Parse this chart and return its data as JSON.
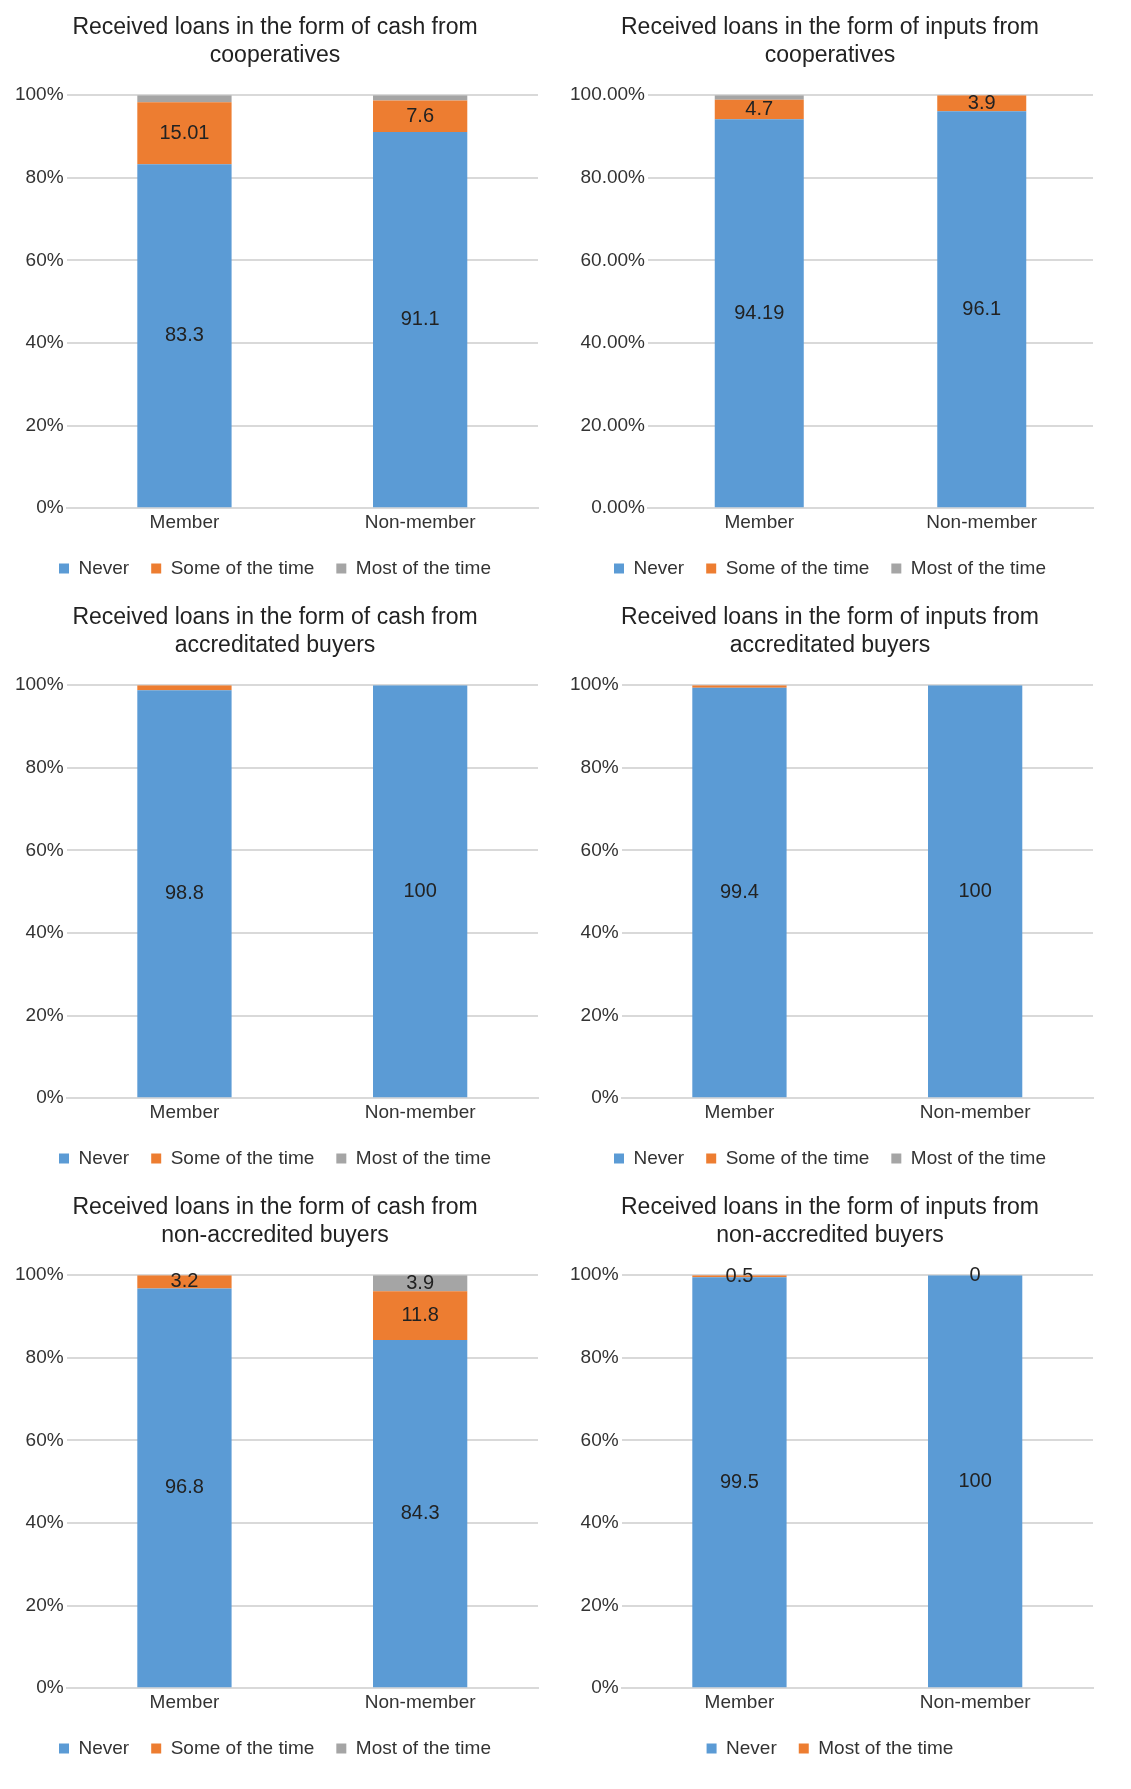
{
  "chart_data": [
    {
      "type": "bar",
      "title": "Received loans in the form of cash from cooperatives",
      "categories": [
        "Member",
        "Non-member"
      ],
      "stacked": true,
      "grid": "y",
      "legend": "bottom",
      "ylim": [
        0,
        100
      ],
      "yticks": [
        {
          "value": 0,
          "label": "0%"
        },
        {
          "value": 20,
          "label": "20%"
        },
        {
          "value": 40,
          "label": "40%"
        },
        {
          "value": 60,
          "label": "60%"
        },
        {
          "value": 80,
          "label": "80%"
        },
        {
          "value": 100,
          "label": "100%"
        }
      ],
      "series": [
        {
          "name": "Never",
          "color": "#5b9bd5",
          "values": [
            83.3,
            91.1
          ],
          "value_labels": [
            "83.3",
            "91.1"
          ]
        },
        {
          "name": "Some of the time",
          "color": "#ed7d31",
          "values": [
            15.01,
            7.6
          ],
          "value_labels": [
            "15.01",
            "7.6"
          ]
        },
        {
          "name": "Most of the time",
          "color": "#a5a5a5",
          "values": [
            1.7,
            1.3
          ],
          "value_labels": [
            null,
            null
          ]
        }
      ]
    },
    {
      "type": "bar",
      "title": "Received loans in the form of inputs from cooperatives",
      "categories": [
        "Member",
        "Non-member"
      ],
      "stacked": true,
      "grid": "y",
      "legend": "bottom",
      "ylim": [
        0,
        100
      ],
      "yticks": [
        {
          "value": 0,
          "label": "0.00%"
        },
        {
          "value": 20,
          "label": "20.00%"
        },
        {
          "value": 40,
          "label": "40.00%"
        },
        {
          "value": 60,
          "label": "60.00%"
        },
        {
          "value": 80,
          "label": "80.00%"
        },
        {
          "value": 100,
          "label": "100.00%"
        }
      ],
      "series": [
        {
          "name": "Never",
          "color": "#5b9bd5",
          "values": [
            94.19,
            96.1
          ],
          "value_labels": [
            "94.19",
            "96.1"
          ]
        },
        {
          "name": "Some of the time",
          "color": "#ed7d31",
          "values": [
            4.7,
            3.9
          ],
          "value_labels": [
            "4.7",
            "3.9"
          ]
        },
        {
          "name": "Most of the time",
          "color": "#a5a5a5",
          "values": [
            1.1,
            0
          ],
          "value_labels": [
            null,
            null
          ]
        }
      ]
    },
    {
      "type": "bar",
      "title": "Received loans in the form of cash from accreditated buyers",
      "categories": [
        "Member",
        "Non-member"
      ],
      "stacked": true,
      "grid": "y",
      "legend": "bottom",
      "ylim": [
        0,
        100
      ],
      "yticks": [
        {
          "value": 0,
          "label": "0%"
        },
        {
          "value": 20,
          "label": "20%"
        },
        {
          "value": 40,
          "label": "40%"
        },
        {
          "value": 60,
          "label": "60%"
        },
        {
          "value": 80,
          "label": "80%"
        },
        {
          "value": 100,
          "label": "100%"
        }
      ],
      "series": [
        {
          "name": "Never",
          "color": "#5b9bd5",
          "values": [
            98.8,
            100
          ],
          "value_labels": [
            "98.8",
            "100"
          ]
        },
        {
          "name": "Some of the time",
          "color": "#ed7d31",
          "values": [
            1.2,
            0
          ],
          "value_labels": [
            null,
            null
          ]
        },
        {
          "name": "Most of the time",
          "color": "#a5a5a5",
          "values": [
            0,
            0
          ],
          "value_labels": [
            null,
            null
          ]
        }
      ]
    },
    {
      "type": "bar",
      "title": "Received loans in the form of inputs from accreditated buyers",
      "categories": [
        "Member",
        "Non-member"
      ],
      "stacked": true,
      "grid": "y",
      "legend": "bottom",
      "ylim": [
        0,
        100
      ],
      "yticks": [
        {
          "value": 0,
          "label": "0%"
        },
        {
          "value": 20,
          "label": "20%"
        },
        {
          "value": 40,
          "label": "40%"
        },
        {
          "value": 60,
          "label": "60%"
        },
        {
          "value": 80,
          "label": "80%"
        },
        {
          "value": 100,
          "label": "100%"
        }
      ],
      "series": [
        {
          "name": "Never",
          "color": "#5b9bd5",
          "values": [
            99.4,
            100
          ],
          "value_labels": [
            "99.4",
            "100"
          ]
        },
        {
          "name": "Some of the time",
          "color": "#ed7d31",
          "values": [
            0.6,
            0
          ],
          "value_labels": [
            null,
            null
          ]
        },
        {
          "name": "Most of the time",
          "color": "#a5a5a5",
          "values": [
            0,
            0
          ],
          "value_labels": [
            null,
            null
          ]
        }
      ]
    },
    {
      "type": "bar",
      "title": "Received loans in the form of cash from non-accredited buyers",
      "categories": [
        "Member",
        "Non-member"
      ],
      "stacked": true,
      "grid": "y",
      "legend": "bottom",
      "ylim": [
        0,
        100
      ],
      "yticks": [
        {
          "value": 0,
          "label": "0%"
        },
        {
          "value": 20,
          "label": "20%"
        },
        {
          "value": 40,
          "label": "40%"
        },
        {
          "value": 60,
          "label": "60%"
        },
        {
          "value": 80,
          "label": "80%"
        },
        {
          "value": 100,
          "label": "100%"
        }
      ],
      "series": [
        {
          "name": "Never",
          "color": "#5b9bd5",
          "values": [
            96.8,
            84.3
          ],
          "value_labels": [
            "96.8",
            "84.3"
          ]
        },
        {
          "name": "Some of the time",
          "color": "#ed7d31",
          "values": [
            3.2,
            11.8
          ],
          "value_labels": [
            "3.2",
            "11.8"
          ]
        },
        {
          "name": "Most of the time",
          "color": "#a5a5a5",
          "values": [
            0,
            3.9
          ],
          "value_labels": [
            null,
            "3.9"
          ]
        }
      ]
    },
    {
      "type": "bar",
      "title": "Received loans in the form of inputs from non-accredited buyers",
      "categories": [
        "Member",
        "Non-member"
      ],
      "stacked": true,
      "grid": "y",
      "legend": "bottom",
      "ylim": [
        0,
        100
      ],
      "yticks": [
        {
          "value": 0,
          "label": "0%"
        },
        {
          "value": 20,
          "label": "20%"
        },
        {
          "value": 40,
          "label": "40%"
        },
        {
          "value": 60,
          "label": "60%"
        },
        {
          "value": 80,
          "label": "80%"
        },
        {
          "value": 100,
          "label": "100%"
        }
      ],
      "series": [
        {
          "name": "Never",
          "color": "#5b9bd5",
          "values": [
            99.5,
            100
          ],
          "value_labels": [
            "99.5",
            "100"
          ]
        },
        {
          "name": "Most of the time",
          "color": "#ed7d31",
          "values": [
            0.5,
            0
          ],
          "value_labels": [
            "0.5",
            "0"
          ]
        }
      ]
    }
  ]
}
